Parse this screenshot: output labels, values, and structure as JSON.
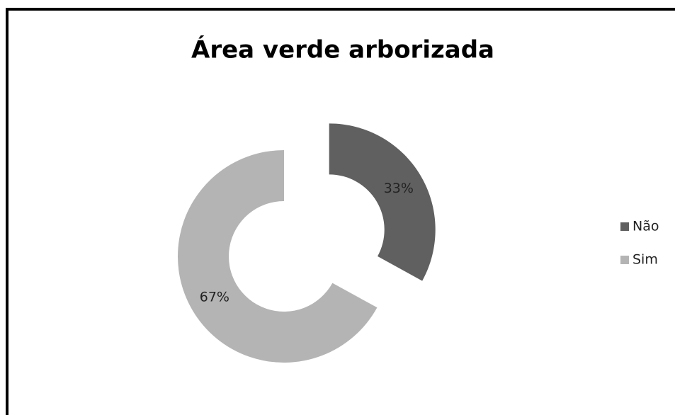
{
  "chart_data": {
    "type": "doughnut",
    "title": "Área verde arborizada",
    "categories": [
      "Não",
      "Sim"
    ],
    "values": [
      33,
      67
    ],
    "value_labels": [
      "33%",
      "67%"
    ],
    "colors": [
      "#606060",
      "#b4b4b4"
    ],
    "exploded": [
      true,
      false
    ],
    "legend": "right"
  }
}
